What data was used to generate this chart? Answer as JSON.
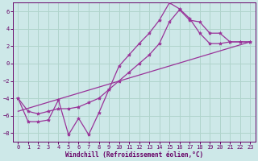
{
  "background_color": "#cde8e8",
  "grid_color": "#b0d4cc",
  "line_color": "#993399",
  "marker": "*",
  "xlabel": "Windchill (Refroidissement éolien,°C)",
  "xlabel_color": "#660066",
  "tick_color": "#660066",
  "xlim": [
    -0.5,
    23.5
  ],
  "ylim": [
    -9,
    7
  ],
  "yticks": [
    -8,
    -6,
    -4,
    -2,
    0,
    2,
    4,
    6
  ],
  "xticks": [
    0,
    1,
    2,
    3,
    4,
    5,
    6,
    7,
    8,
    9,
    10,
    11,
    12,
    13,
    14,
    15,
    16,
    17,
    18,
    19,
    20,
    21,
    22,
    23
  ],
  "line1_x": [
    0,
    1,
    2,
    3,
    4,
    5,
    6,
    7,
    8,
    9,
    10,
    11,
    12,
    13,
    14,
    15,
    16,
    17,
    18,
    19,
    20,
    21,
    22,
    23
  ],
  "line1_y": [
    -4.0,
    -6.7,
    -6.7,
    -6.5,
    -4.2,
    -8.2,
    -6.3,
    -8.2,
    -5.7,
    -3.0,
    -0.3,
    1.0,
    2.3,
    3.5,
    5.0,
    7.0,
    6.3,
    5.2,
    3.5,
    2.3,
    2.3,
    2.5,
    2.5,
    2.5
  ],
  "line2_x": [
    0,
    1,
    2,
    3,
    4,
    5,
    6,
    7,
    8,
    9,
    10,
    11,
    12,
    13,
    14,
    15,
    16,
    17,
    18,
    19,
    20,
    21,
    22,
    23
  ],
  "line2_y": [
    -4.0,
    -5.5,
    -5.8,
    -5.5,
    -5.2,
    -5.2,
    -5.0,
    -4.5,
    -4.0,
    -3.0,
    -2.0,
    -1.0,
    0.0,
    1.0,
    2.3,
    4.8,
    6.2,
    5.0,
    4.8,
    3.5,
    3.5,
    2.5,
    2.5,
    2.5
  ],
  "line3_x": [
    0,
    23
  ],
  "line3_y": [
    -5.5,
    2.5
  ]
}
